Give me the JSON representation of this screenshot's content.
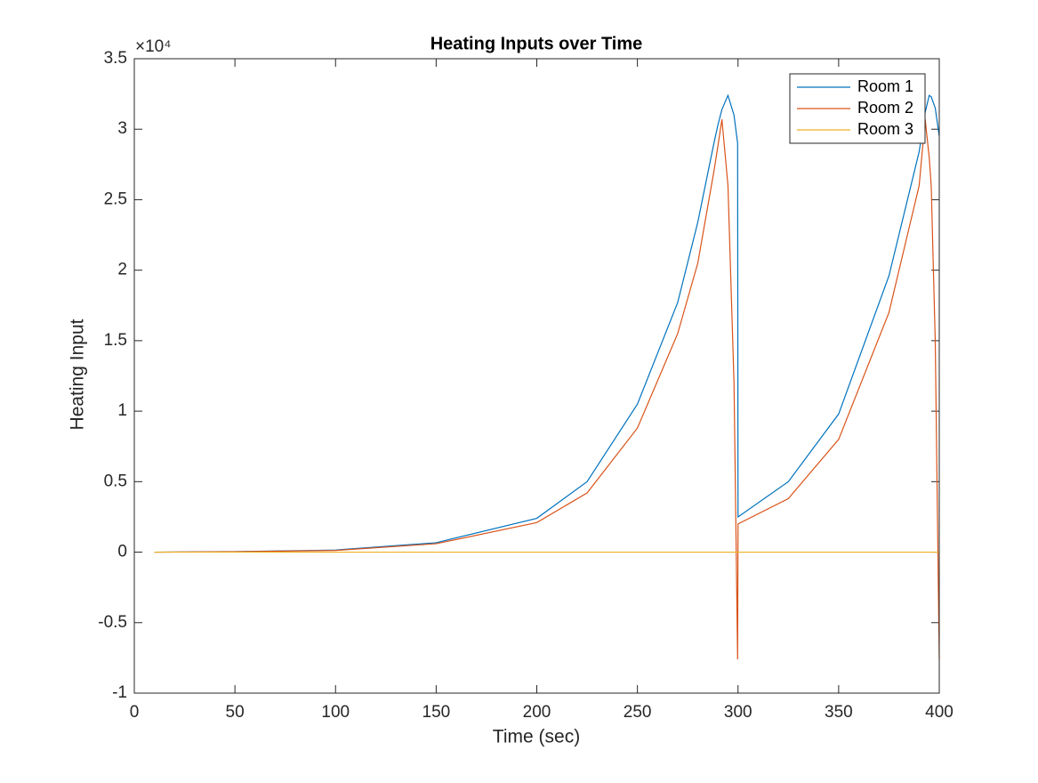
{
  "chart_data": {
    "type": "line",
    "title": "Heating Inputs over Time",
    "x_label": "Time (sec)",
    "y_label": "Heating Input",
    "y_exponent_label": "×10⁴",
    "x": [
      10,
      50,
      100,
      150,
      200,
      225,
      250,
      270,
      280,
      288,
      290,
      292,
      295,
      298,
      299.8,
      300,
      325,
      350,
      375,
      390,
      393,
      395,
      396,
      398,
      400
    ],
    "series": [
      {
        "name": "Room 1",
        "color": "#0072bd",
        "values": [
          0,
          0.004,
          0.015,
          0.067,
          0.24,
          0.5,
          1.05,
          1.77,
          2.34,
          2.9,
          3.03,
          3.14,
          3.24,
          3.1,
          2.9,
          0.25,
          0.5,
          0.98,
          1.96,
          2.84,
          3.12,
          3.24,
          3.23,
          3.15,
          2.95
        ]
      },
      {
        "name": "Room 2",
        "color": "#d95319",
        "values": [
          0,
          0.003,
          0.012,
          0.06,
          0.21,
          0.42,
          0.88,
          1.55,
          2.05,
          2.7,
          2.88,
          3.07,
          2.6,
          1.2,
          -0.76,
          0.2,
          0.38,
          0.8,
          1.7,
          2.6,
          3.07,
          2.8,
          2.6,
          1.5,
          -0.76
        ]
      },
      {
        "name": "Room 3",
        "color": "#edb120",
        "values": [
          0,
          0,
          0,
          0,
          0,
          0,
          0,
          0,
          0,
          0,
          0,
          0,
          0,
          0,
          0,
          0,
          0,
          0,
          0,
          0,
          0,
          0,
          0,
          0,
          0
        ]
      }
    ],
    "xlim": [
      0,
      400
    ],
    "xticks": [
      0,
      50,
      100,
      150,
      200,
      250,
      300,
      350,
      400
    ],
    "ylim": [
      -1,
      3.5
    ],
    "yticks": [
      -1,
      -0.5,
      0,
      0.5,
      1,
      1.5,
      2,
      2.5,
      3,
      3.5
    ],
    "legend": "top-right",
    "grid": false
  }
}
